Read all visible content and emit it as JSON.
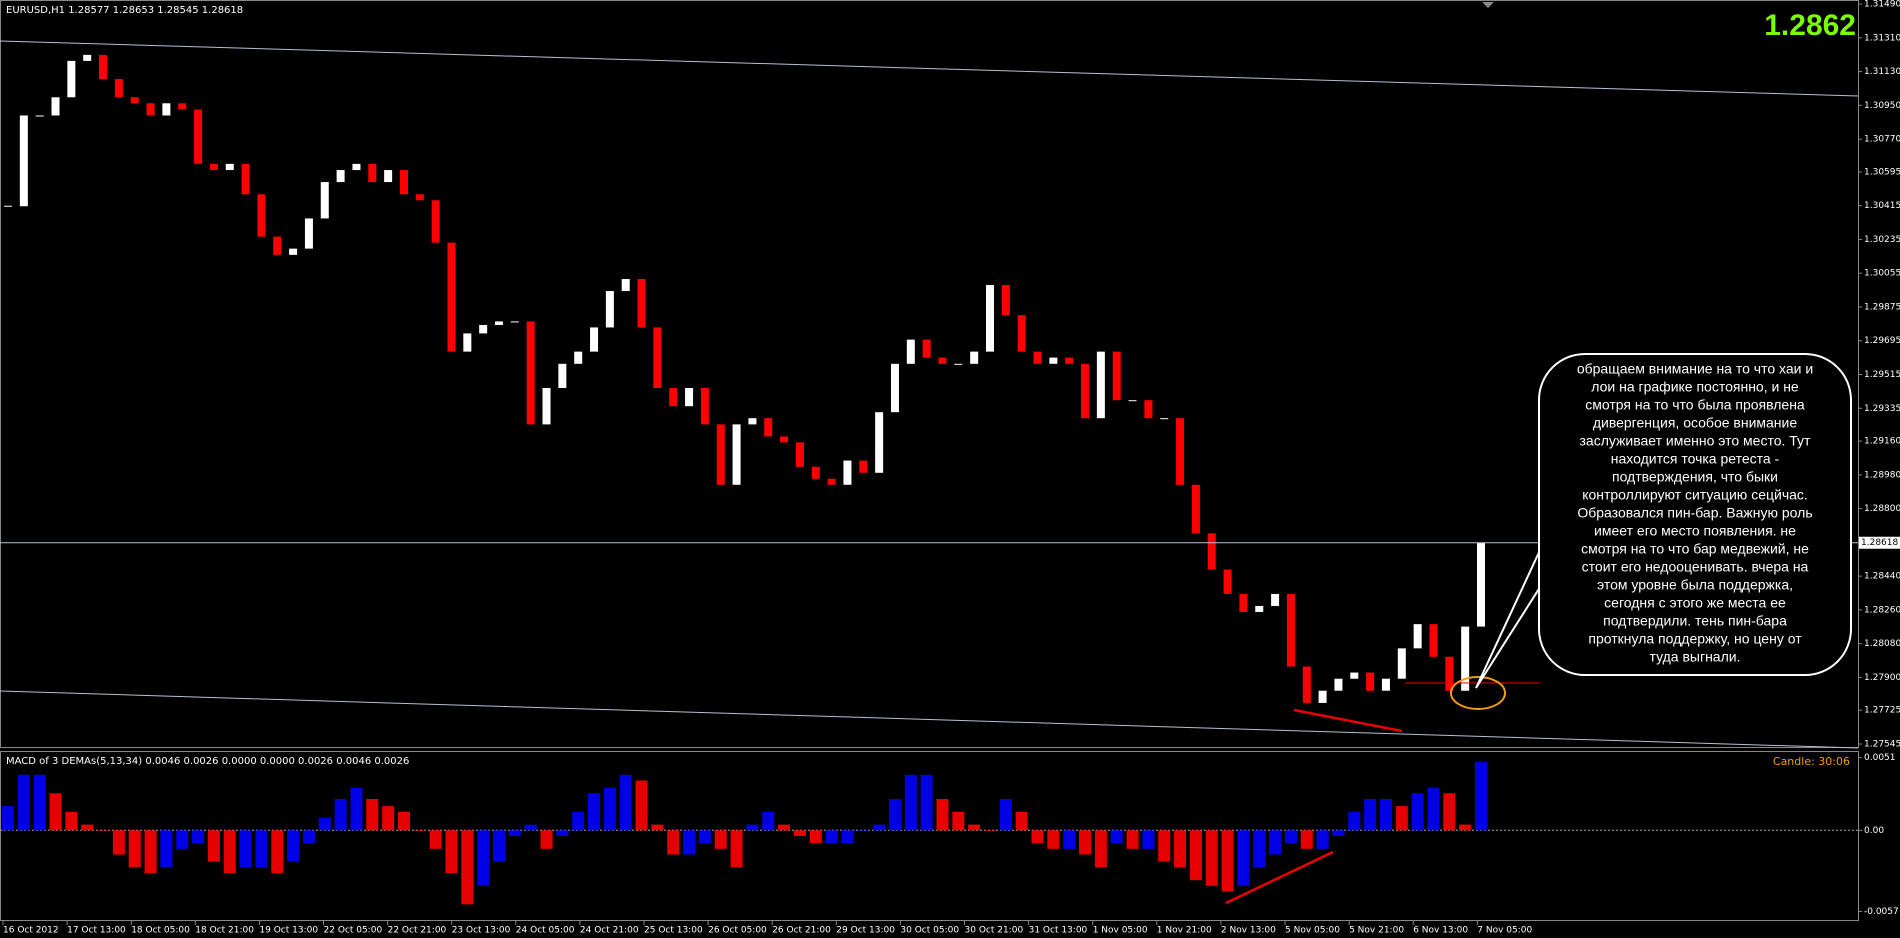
{
  "chart_data": [
    {
      "type": "candlestick",
      "title": "EURUSD,H1  1.28577 1.28653 1.28545 1.28618",
      "big_price": "1.2862",
      "values": [
        1.30412,
        1.30896,
        1.30896,
        1.30993,
        1.31187,
        1.31219,
        1.3109,
        1.30993,
        1.30961,
        1.30896,
        1.30961,
        1.30928,
        1.30638,
        1.30605,
        1.30638,
        1.30476,
        1.3025,
        1.30153,
        1.30186,
        1.30347,
        1.30541,
        1.30605,
        1.30638,
        1.30541,
        1.30605,
        1.30476,
        1.30444,
        1.30218,
        1.29637,
        1.29734,
        1.29779,
        1.29798,
        1.29798,
        1.29249,
        1.29443,
        1.29572,
        1.29637,
        1.29766,
        1.2996,
        1.30024,
        1.29766,
        1.29443,
        1.29346,
        1.29443,
        1.29249,
        1.28927,
        1.29249,
        1.29282,
        1.29185,
        1.29153,
        1.29023,
        1.28959,
        1.28927,
        1.29056,
        1.28991,
        1.29314,
        1.29572,
        1.29701,
        1.29605,
        1.29572,
        1.29572,
        1.29637,
        1.29992,
        1.29831,
        1.29637,
        1.29572,
        1.29605,
        1.29572,
        1.29282,
        1.29637,
        1.29378,
        1.29378,
        1.29282,
        1.29282,
        1.28927,
        1.28668,
        1.28475,
        1.28345,
        1.28249,
        1.28281,
        1.28345,
        1.27958,
        1.27764,
        1.27829,
        1.27893,
        1.27926,
        1.27829,
        1.27893,
        1.28055,
        1.28184,
        1.2801,
        1.27829,
        1.28171,
        1.28618
      ],
      "up_color": "#ffffff",
      "down_color": "#ff0000",
      "ylim": [
        1.27529,
        1.31501
      ],
      "yticks": [
        {
          "value": 1.3149,
          "label": "1.31490"
        },
        {
          "value": 1.3131,
          "label": "1.31310"
        },
        {
          "value": 1.3113,
          "label": "1.31130"
        },
        {
          "value": 1.3095,
          "label": "1.30950"
        },
        {
          "value": 1.3077,
          "label": "1.30770"
        },
        1.30595,
        1.30415,
        1.30235,
        1.30055,
        1.29875,
        1.29695,
        1.29515,
        1.29335,
        {
          "value": 1.2916,
          "label": "1.29160"
        },
        {
          "value": 1.2898,
          "label": "1.28980"
        },
        {
          "value": 1.288,
          "label": "1.28800"
        },
        {
          "value": 1.2844,
          "label": "1.28440"
        },
        {
          "value": 1.2826,
          "label": "1.28260"
        },
        {
          "value": 1.2808,
          "label": "1.28080"
        },
        {
          "value": 1.279,
          "label": "1.27900"
        },
        1.27725,
        1.27545
      ],
      "current_price": 1.28618
    },
    {
      "type": "bar",
      "title": "MACD of 3 DEMAs(5,13,34) 0.0046 0.0026 0.0000 0.0000 0.0026 0.0046 0.0026",
      "candle_timer": "Candle:  30:06",
      "values": [
        0.0017,
        0.0039,
        0.0039,
        0.0026,
        0.0013,
        0.0004,
        0,
        -0.0017,
        -0.0026,
        -0.003,
        -0.0026,
        -0.0013,
        -0.0009,
        -0.0022,
        -0.003,
        -0.0026,
        -0.0026,
        -0.003,
        -0.0022,
        -0.0009,
        0.0009,
        0.0022,
        0.003,
        0.0022,
        0.0017,
        0.0013,
        0,
        -0.0013,
        -0.003,
        -0.0052,
        -0.0039,
        -0.0022,
        -0.0004,
        0.0004,
        -0.0013,
        -0.0004,
        0.0013,
        0.0026,
        0.003,
        0.0039,
        0.0035,
        0.0004,
        -0.0017,
        -0.0017,
        -0.0009,
        -0.0013,
        -0.0026,
        0.0004,
        0.0013,
        0.0004,
        -0.0004,
        -0.0009,
        -0.0009,
        -0.0009,
        0,
        0.0004,
        0.0022,
        0.0039,
        0.0039,
        0.0022,
        0.0013,
        0.0004,
        0,
        0.0022,
        0.0013,
        -0.0009,
        -0.0013,
        -0.0013,
        -0.0017,
        -0.0026,
        -0.0009,
        -0.0013,
        -0.0013,
        -0.0022,
        -0.0026,
        -0.0035,
        -0.0039,
        -0.0043,
        -0.0039,
        -0.0026,
        -0.0017,
        -0.0009,
        -0.0013,
        -0.0013,
        -0.0004,
        0.0013,
        0.0022,
        0.0022,
        0.0017,
        0.0026,
        0.003,
        0.0026,
        0.0004,
        0.0048
      ],
      "up_color": "#0000ff",
      "down_color": "#ff0000",
      "ylim": [
        -0.0063,
        0.0055
      ],
      "yticks": [
        0.0051,
        {
          "value": 0,
          "label": "0.00"
        },
        -0.0057
      ],
      "zero_line": true
    }
  ],
  "time_axis": {
    "labels": [
      "16 Oct 2012",
      "17 Oct 13:00",
      "18 Oct 05:00",
      "18 Oct 21:00",
      "19 Oct 13:00",
      "22 Oct 05:00",
      "22 Oct 21:00",
      "23 Oct 13:00",
      "24 Oct 05:00",
      "24 Oct 21:00",
      "25 Oct 13:00",
      "26 Oct 05:00",
      "26 Oct 21:00",
      "29 Oct 13:00",
      "30 Oct 05:00",
      "30 Oct 21:00",
      "31 Oct 13:00",
      "1 Nov 05:00",
      "1 Nov 21:00",
      "2 Nov 13:00",
      "5 Nov 05:00",
      "5 Nov 21:00",
      "6 Nov 13:00",
      "7 Nov 05:00"
    ]
  },
  "annotation": {
    "lines": [
      "обращаем внимание на то что хаи и",
      "лои на графике постоянно, и не",
      "смотря на то что была проявлена",
      "дивергенция, особое внимание",
      "заслуживает именно это место. Тут",
      "находится точка ретеста -",
      "подтверждения, что быки",
      "контроллируют ситуацию сецйчас.",
      "Образовался пин-бар. Важную роль",
      "имеет его место появления. не",
      "смотря на то что бар медвежий, не",
      "стоит его недооценивать. вчера на",
      "этом уровне была поддержка,",
      "сегодня с этого же места ее",
      "подтвердили. тень пин-бара",
      "проткнула поддержку, но цену от",
      "туда выгнали."
    ]
  }
}
